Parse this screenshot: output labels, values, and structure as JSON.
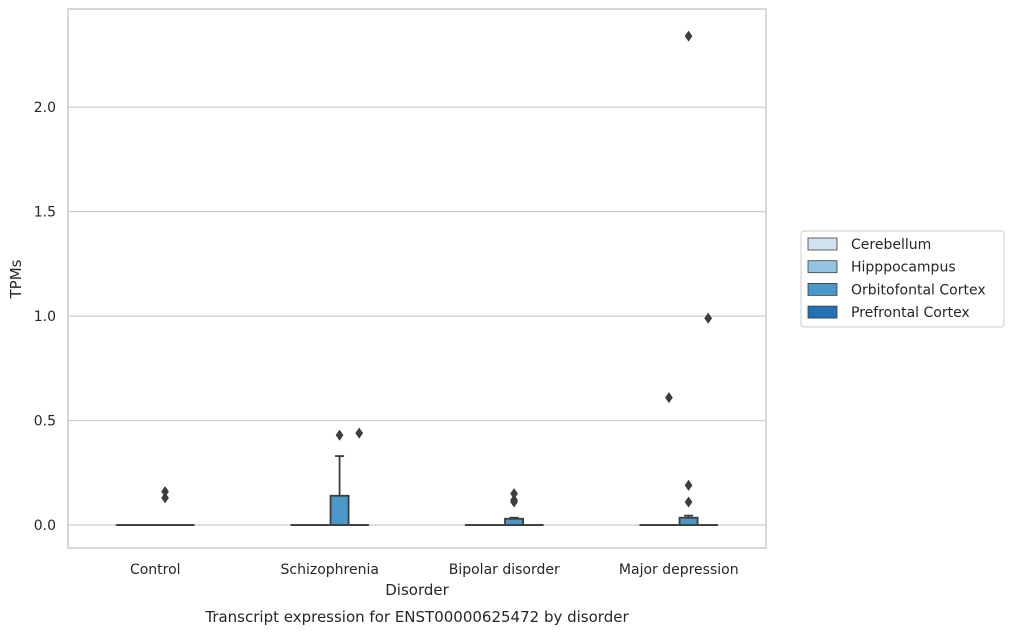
{
  "chart_data": {
    "type": "box",
    "xlabel": "Disorder",
    "ylabel": "TPMs",
    "caption": "Transcript expression for ENST00000625472 by disorder",
    "categories": [
      "Control",
      "Schizophrenia",
      "Bipolar disorder",
      "Major depression"
    ],
    "ylim": [
      -0.11,
      2.47
    ],
    "yticks": [
      0.0,
      0.5,
      1.0,
      1.5,
      2.0
    ],
    "ytick_labels": [
      "0.0",
      "0.5",
      "1.0",
      "1.5",
      "2.0"
    ],
    "grid": "horizontal",
    "legend_placement": "center-right, outside plot",
    "series": [
      {
        "name": "Cerebellum",
        "color": "#d0e1f2",
        "boxes": [
          {
            "category": "Control",
            "q1": 0.0,
            "median": 0.0,
            "q3": 0.0,
            "whisker_low": 0.0,
            "whisker_high": 0.0,
            "outliers": []
          },
          {
            "category": "Schizophrenia",
            "q1": 0.0,
            "median": 0.0,
            "q3": 0.0,
            "whisker_low": 0.0,
            "whisker_high": 0.0,
            "outliers": []
          },
          {
            "category": "Bipolar disorder",
            "q1": 0.0,
            "median": 0.0,
            "q3": 0.0,
            "whisker_low": 0.0,
            "whisker_high": 0.0,
            "outliers": []
          },
          {
            "category": "Major depression",
            "q1": 0.0,
            "median": 0.0,
            "q3": 0.0,
            "whisker_low": 0.0,
            "whisker_high": 0.0,
            "outliers": []
          }
        ]
      },
      {
        "name": "Hipppocampus",
        "color": "#94c4df",
        "boxes": [
          {
            "category": "Control",
            "q1": 0.0,
            "median": 0.0,
            "q3": 0.0,
            "whisker_low": 0.0,
            "whisker_high": 0.0,
            "outliers": []
          },
          {
            "category": "Schizophrenia",
            "q1": 0.0,
            "median": 0.0,
            "q3": 0.0,
            "whisker_low": 0.0,
            "whisker_high": 0.0,
            "outliers": []
          },
          {
            "category": "Bipolar disorder",
            "q1": 0.0,
            "median": 0.0,
            "q3": 0.0,
            "whisker_low": 0.0,
            "whisker_high": 0.0,
            "outliers": []
          },
          {
            "category": "Major depression",
            "q1": 0.0,
            "median": 0.0,
            "q3": 0.0,
            "whisker_low": 0.0,
            "whisker_high": 0.0,
            "outliers": [
              0.61
            ]
          }
        ]
      },
      {
        "name": "Orbitofontal Cortex",
        "color": "#4a98c9",
        "boxes": [
          {
            "category": "Control",
            "q1": 0.0,
            "median": 0.0,
            "q3": 0.0,
            "whisker_low": 0.0,
            "whisker_high": 0.0,
            "outliers": [
              0.13,
              0.16
            ]
          },
          {
            "category": "Schizophrenia",
            "q1": 0.0,
            "median": 0.0,
            "q3": 0.14,
            "whisker_low": 0.0,
            "whisker_high": 0.33,
            "outliers": [
              0.43
            ]
          },
          {
            "category": "Bipolar disorder",
            "q1": 0.0,
            "median": 0.0,
            "q3": 0.03,
            "whisker_low": 0.0,
            "whisker_high": 0.035,
            "outliers": [
              0.11,
              0.12,
              0.15
            ]
          },
          {
            "category": "Major depression",
            "q1": 0.0,
            "median": 0.0,
            "q3": 0.035,
            "whisker_low": 0.0,
            "whisker_high": 0.045,
            "outliers": [
              0.11,
              0.19,
              2.34
            ]
          }
        ]
      },
      {
        "name": "Prefrontal Cortex",
        "color": "#2271b5",
        "boxes": [
          {
            "category": "Control",
            "q1": 0.0,
            "median": 0.0,
            "q3": 0.0,
            "whisker_low": 0.0,
            "whisker_high": 0.0,
            "outliers": []
          },
          {
            "category": "Schizophrenia",
            "q1": 0.0,
            "median": 0.0,
            "q3": 0.0,
            "whisker_low": 0.0,
            "whisker_high": 0.0,
            "outliers": [
              0.44
            ]
          },
          {
            "category": "Bipolar disorder",
            "q1": 0.0,
            "median": 0.0,
            "q3": 0.0,
            "whisker_low": 0.0,
            "whisker_high": 0.0,
            "outliers": []
          },
          {
            "category": "Major depression",
            "q1": 0.0,
            "median": 0.0,
            "q3": 0.0,
            "whisker_low": 0.0,
            "whisker_high": 0.0,
            "outliers": [
              0.99
            ]
          }
        ]
      }
    ],
    "legend": [
      "Cerebellum",
      "Hipppocampus",
      "Orbitofontal Cortex",
      "Prefrontal Cortex"
    ],
    "colors": {
      "axes_edge": "#cccccc",
      "grid": "#cccccc",
      "box_line": "#3d3d3d",
      "text": "#262626"
    }
  }
}
